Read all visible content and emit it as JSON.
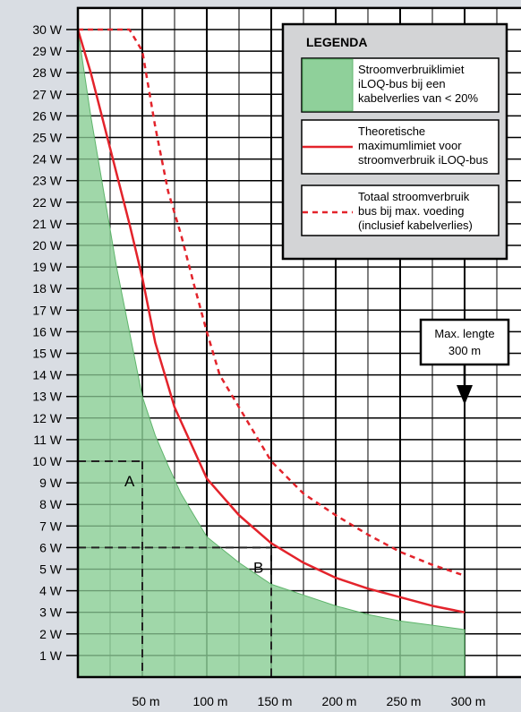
{
  "chart_data": {
    "type": "line",
    "xlim": [
      -50,
      330
    ],
    "ylim": [
      0,
      31
    ],
    "x_ticks": [
      50,
      100,
      150,
      200,
      250,
      300
    ],
    "x_tick_labels": [
      "50 m",
      "100 m",
      "150 m",
      "200 m",
      "250 m",
      "300 m"
    ],
    "y_ticks": [
      1,
      2,
      3,
      4,
      5,
      6,
      7,
      8,
      9,
      10,
      11,
      12,
      13,
      14,
      15,
      16,
      17,
      18,
      19,
      20,
      21,
      22,
      23,
      24,
      25,
      26,
      27,
      28,
      29,
      30
    ],
    "y_tick_labels": [
      "1 W",
      "2 W",
      "3 W",
      "4 W",
      "5 W",
      "6 W",
      "7 W",
      "8 W",
      "9 W",
      "10 W",
      "11 W",
      "12 W",
      "13 W",
      "14 W",
      "15 W",
      "16 W",
      "17 W",
      "18 W",
      "19 W",
      "20 W",
      "21 W",
      "22 W",
      "23 W",
      "24 W",
      "25 W",
      "26 W",
      "27 W",
      "28 W",
      "29 W",
      "30 W"
    ],
    "grid": true,
    "series": [
      {
        "name": "Stroomverbruiklimiet iLOQ-bus bij een kabelverlies van < 20%",
        "style": "area",
        "color": "#8fd09a",
        "x": [
          0,
          10,
          20,
          30,
          40,
          50,
          60,
          70,
          80,
          90,
          100,
          125,
          150,
          175,
          200,
          225,
          250,
          275,
          300
        ],
        "y": [
          30,
          26,
          22.5,
          19,
          16,
          13,
          11.2,
          9.8,
          8.5,
          7.5,
          6.5,
          5.3,
          4.3,
          3.8,
          3.3,
          2.9,
          2.6,
          2.4,
          2.2
        ]
      },
      {
        "name": "Theoretische maximumlimiet voor stroomverbruik iLOQ-bus",
        "style": "solid",
        "color": "#e3232b",
        "x": [
          0,
          10,
          25,
          40,
          50,
          60,
          75,
          100,
          125,
          150,
          175,
          200,
          225,
          250,
          275,
          300
        ],
        "y": [
          30,
          28,
          24.5,
          21,
          18.5,
          15.5,
          12.5,
          9.2,
          7.5,
          6.2,
          5.3,
          4.6,
          4.1,
          3.7,
          3.3,
          3.0
        ]
      },
      {
        "name": "Totaal stroomverbruik bus bij max. voeding (inclusief kabelverlies)",
        "style": "dashed",
        "color": "#e3232b",
        "x": [
          0,
          40,
          50,
          60,
          70,
          80,
          90,
          100,
          110,
          125,
          150,
          175,
          200,
          225,
          250,
          275,
          300
        ],
        "y": [
          30,
          30,
          29,
          25.5,
          22.5,
          20.5,
          18.2,
          16,
          14,
          12.5,
          10,
          8.5,
          7.5,
          6.6,
          5.8,
          5.2,
          4.7
        ]
      }
    ],
    "reference_lines": [
      {
        "label": "A",
        "x": 50,
        "y": 10
      },
      {
        "label": "B",
        "x": 150,
        "y": 6
      }
    ],
    "legend": {
      "title": "LEGENDA",
      "position": "top-right",
      "items": [
        {
          "symbol": "area",
          "color": "#8fd09a",
          "lines": [
            "Stroomverbruiklimiet",
            "iLOQ-bus bij een",
            "kabelverlies van < 20%"
          ]
        },
        {
          "symbol": "solid",
          "color": "#e3232b",
          "lines": [
            "Theoretische",
            "maximumlimiet voor",
            "stroomverbruik iLOQ-bus"
          ]
        },
        {
          "symbol": "dashed",
          "color": "#e3232b",
          "lines": [
            "Totaal stroomverbruik",
            "bus bij max. voeding",
            "(inclusief kabelverlies)"
          ]
        }
      ]
    },
    "annotation": {
      "lines": [
        "Max. lengte",
        "300 m"
      ],
      "x": 300,
      "y": 13
    }
  }
}
